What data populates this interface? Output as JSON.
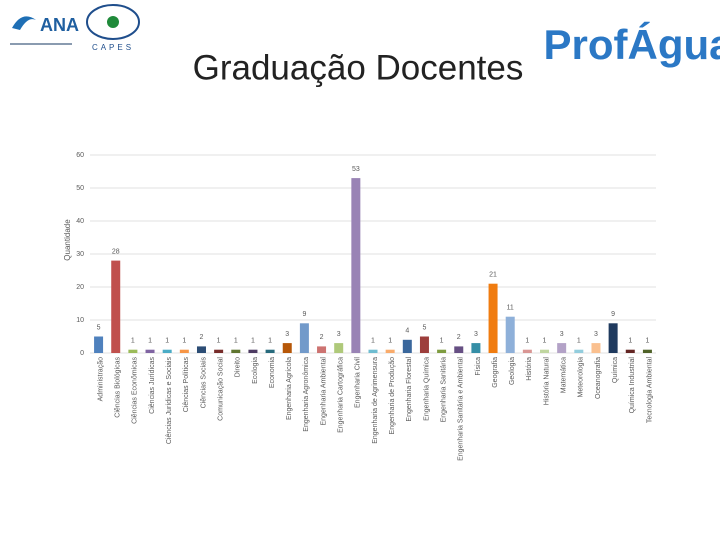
{
  "logos": {
    "left": "ANA",
    "middle": "CAPES",
    "right": "ProfÁgua"
  },
  "chart_data": {
    "type": "bar",
    "title": "Graduação Docentes",
    "y_label": "Quantidade",
    "categories": [
      "Administração",
      "Ciências Biológicas",
      "Ciências Econômicas",
      "Ciências Jurídicas",
      "Ciências Jurídicas e Sociais",
      "Ciências Políticas",
      "Ciências Sociais",
      "Comunicação Social",
      "Direito",
      "Ecologia",
      "Economia",
      "Engenharia Agrícola",
      "Engenharia Agronômica",
      "Engenharia Ambiental",
      "Engenharia Cartográfica",
      "Engenharia Civil",
      "Engenharia de Agrimensura",
      "Engenharia de Produção",
      "Engenharia Florestal",
      "Engenharia Química",
      "Engenharia Sanitária",
      "Engenharia Sanitária e Ambiental",
      "Física",
      "Geografia",
      "Geologia",
      "História",
      "História Natural",
      "Matemática",
      "Meteorologia",
      "Oceanografia",
      "Química",
      "Química Industrial",
      "Tecnologia Ambiental"
    ],
    "values": [
      5,
      28,
      1,
      1,
      1,
      1,
      2,
      1,
      1,
      1,
      1,
      3,
      9,
      2,
      3,
      53,
      1,
      1,
      4,
      5,
      1,
      2,
      3,
      21,
      11,
      1,
      1,
      3,
      1,
      3,
      9,
      1,
      1
    ],
    "colors": [
      "#4f81bd",
      "#c0504d",
      "#9bbb59",
      "#8064a2",
      "#4bacc6",
      "#f79646",
      "#2c4d75",
      "#772c2a",
      "#5f7530",
      "#4d3b62",
      "#276a7c",
      "#b65708",
      "#729aca",
      "#cd7371",
      "#afc97a",
      "#9983b5",
      "#6fbdd1",
      "#f9ab6b",
      "#3a679c",
      "#9d3e3c",
      "#7e9c40",
      "#664f83",
      "#358ea6",
      "#f07c10",
      "#8eb0d9",
      "#d99694",
      "#c0d6a0",
      "#b3a2c7",
      "#93cddd",
      "#fac08f",
      "#1f3a5e",
      "#632523",
      "#4f6228"
    ],
    "ylim": [
      0,
      60
    ],
    "yticks": [
      0,
      10,
      20,
      30,
      40,
      50,
      60
    ],
    "grid": true
  }
}
